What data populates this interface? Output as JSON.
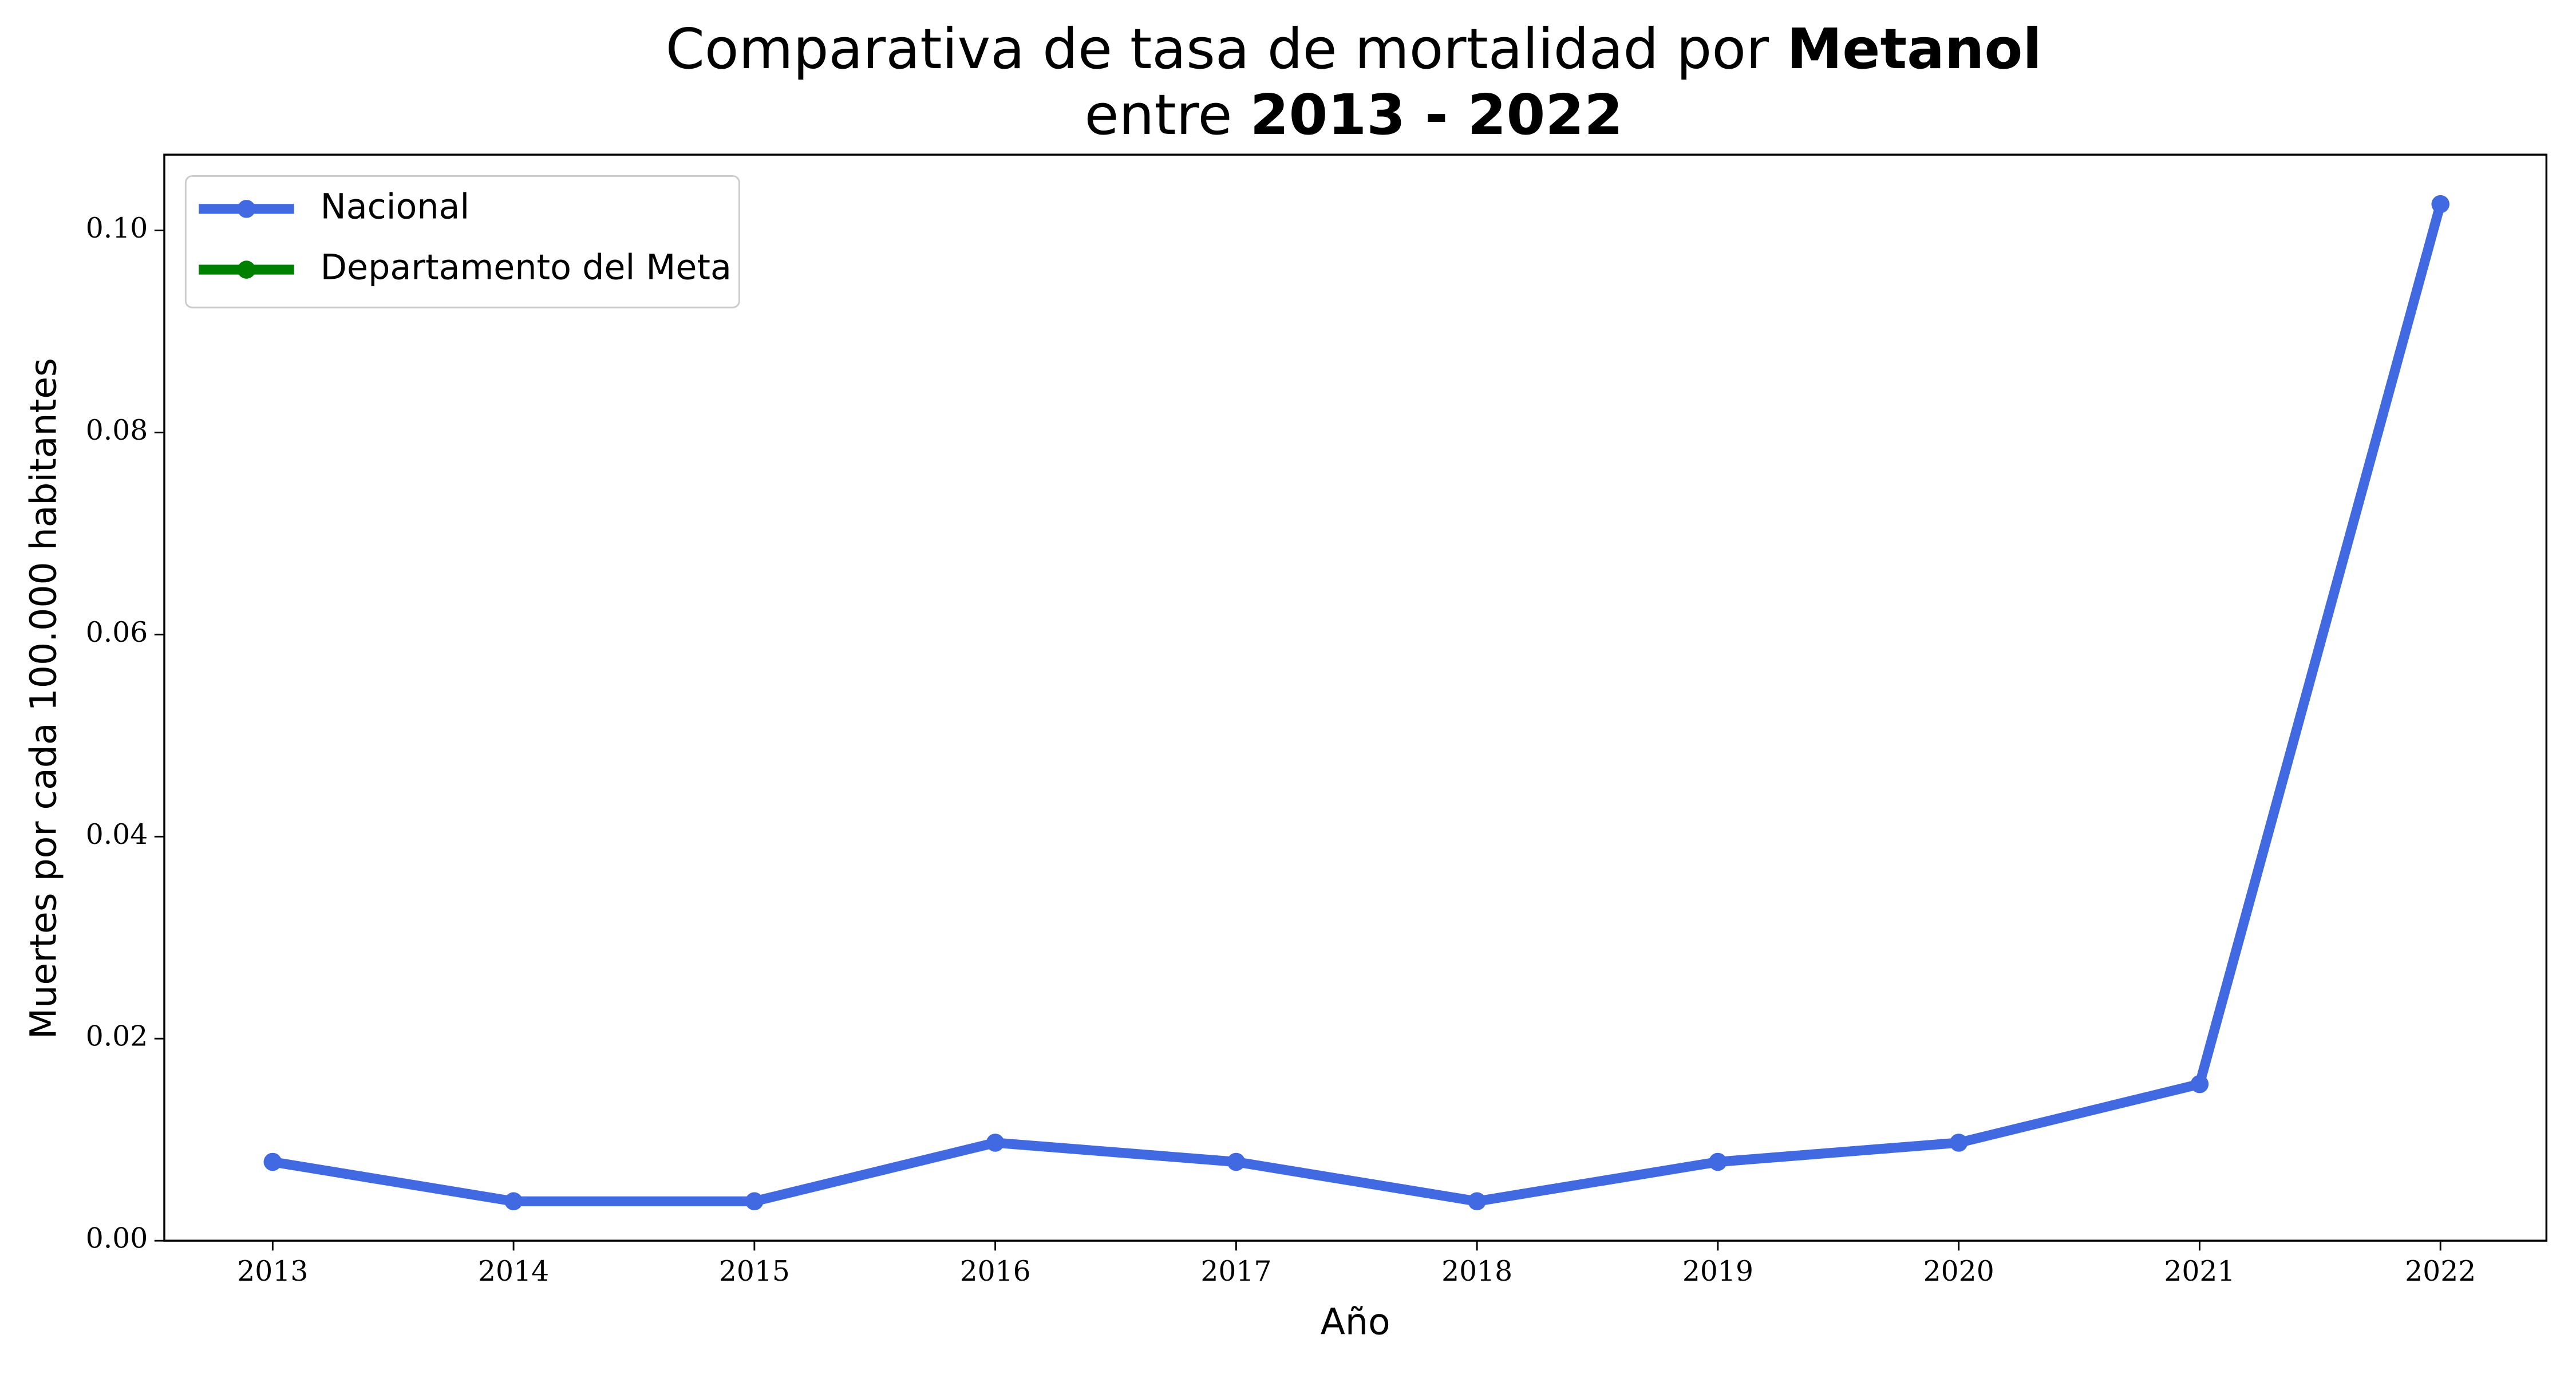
{
  "chart_data": {
    "type": "line",
    "title": {
      "line1": "Comparativa de tasa de mortalidad por",
      "line1_bold": "Metanol",
      "line2": "entre",
      "line2_bold": "2013 - 2022"
    },
    "xlabel": "Año",
    "ylabel": "Muertes por cada 100.000 habitantes",
    "x": [
      2013,
      2014,
      2015,
      2016,
      2017,
      2018,
      2019,
      2020,
      2021,
      2022
    ],
    "series": [
      {
        "name": "Nacional",
        "color": "#4169e1",
        "values": [
          0.0078,
          0.0039,
          0.0039,
          0.0097,
          0.0078,
          0.0039,
          0.0078,
          0.0097,
          0.0155,
          0.1026
        ]
      },
      {
        "name": "Departamento del Meta",
        "color": "#008000",
        "values": [
          null,
          null,
          null,
          null,
          null,
          null,
          null,
          null,
          null,
          null
        ]
      }
    ],
    "xlim": [
      2012.55,
      2022.44
    ],
    "xticks": [
      2013,
      2014,
      2015,
      2016,
      2017,
      2018,
      2019,
      2020,
      2021,
      2022
    ],
    "ylim": [
      0,
      0.1075
    ],
    "yticks": [
      {
        "value": 0,
        "label": "0.00"
      },
      {
        "value": 0.02,
        "label": "0.02"
      },
      {
        "value": 0.04,
        "label": "0.04"
      },
      {
        "value": 0.06,
        "label": "0.06"
      },
      {
        "value": 0.08,
        "label": "0.08"
      },
      {
        "value": 0.1,
        "label": "0.10"
      }
    ],
    "legend": "upper left",
    "grid": false
  }
}
